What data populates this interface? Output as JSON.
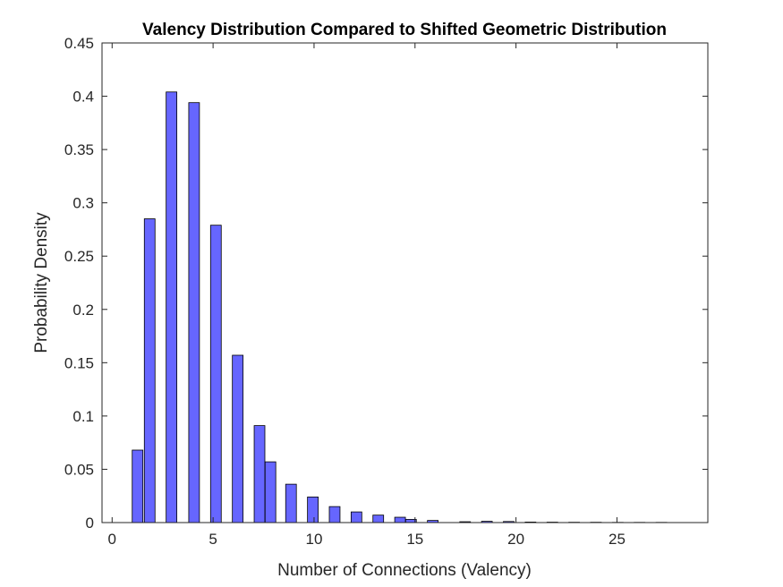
{
  "chart_data": {
    "type": "bar",
    "title": "Valency Distribution Compared to Shifted Geometric Distribution",
    "xlabel": "Number of Connections (Valency)",
    "ylabel": "Probability Density",
    "xlim": [
      -0.5,
      29.5
    ],
    "ylim": [
      0,
      0.45
    ],
    "xticks": [
      "0",
      "5",
      "10",
      "15",
      "20",
      "25"
    ],
    "yticks": [
      "0",
      "0.05",
      "0.1",
      "0.15",
      "0.2",
      "0.25",
      "0.3",
      "0.35",
      "0.4",
      "0.45"
    ],
    "bar_width": 0.53,
    "grid": false,
    "bar_color": "#6666ff",
    "edge_color": "#000000",
    "series": [
      {
        "x": [
          1.26,
          1.86,
          2.94,
          4.06,
          5.14,
          6.22,
          7.3,
          7.84,
          8.86,
          9.94,
          11.02,
          12.1,
          13.18,
          14.26,
          14.8,
          15.88,
          17.48,
          18.56,
          19.64,
          20.72,
          21.8,
          22.88,
          23.96,
          25.04,
          26.12,
          27.2
        ],
        "values": [
          0.068,
          0.285,
          0.404,
          0.394,
          0.279,
          0.157,
          0.091,
          0.057,
          0.036,
          0.024,
          0.015,
          0.01,
          0.007,
          0.005,
          0.003,
          0.002,
          0.0008,
          0.0012,
          0.001,
          0.0005,
          0.0004,
          0.0003,
          0.0003,
          0.0002,
          0.0002,
          0.0002
        ]
      }
    ]
  }
}
